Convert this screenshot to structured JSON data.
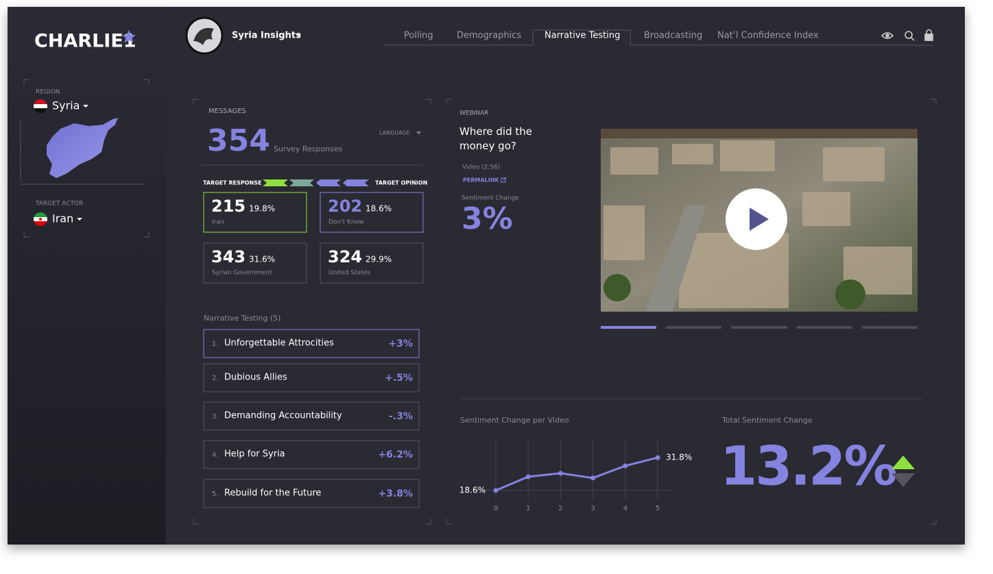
{
  "brand": "CHARLIE1",
  "sidebar": {
    "region_label": "REGION",
    "region": "Syria",
    "actor_label": "TARGET ACTOR",
    "actor": "Iran"
  },
  "header": {
    "project": "Syria Insights",
    "nav": [
      "Polling",
      "Demographics",
      "Narrative Testing",
      "Broadcasting",
      "Nat’l Confidence Index"
    ]
  },
  "messages": {
    "label": "MESSAGES",
    "count": 354,
    "count_label": "Survey Responses",
    "language": "LANGUAGE",
    "target_response": "TARGET RESPONSE",
    "target_opinion": "TARGET OPINION",
    "cards": [
      {
        "value": 215,
        "percent": "19.8%",
        "label": "Iran"
      },
      {
        "value": 202,
        "percent": "18.6%",
        "label": "Don't Know"
      },
      {
        "value": 343,
        "percent": "31.6%",
        "label": "Syrian Government"
      },
      {
        "value": 324,
        "percent": "29.9%",
        "label": "United States"
      }
    ]
  },
  "narratives": {
    "title": "Narrative Testing (5)",
    "items": [
      {
        "index": "1.",
        "name": "Unforgettable Attrocities",
        "change": "+3%"
      },
      {
        "index": "2.",
        "name": "Dubious Allies",
        "change": "+.5%"
      },
      {
        "index": "3.",
        "name": "Demanding Accountability",
        "change": "-.3%"
      },
      {
        "index": "4.",
        "name": "Help for Syria",
        "change": "+6.2%"
      },
      {
        "index": "5.",
        "name": "Rebuild for the Future",
        "change": "+3.8%"
      }
    ]
  },
  "webinar": {
    "label": "WEBINAR",
    "title": "Where did the money go?",
    "meta": "Video (2:56)",
    "permalink": "PERMALINK",
    "sentiment_label": "Sentiment Change",
    "sentiment": "3%"
  },
  "chart_data": {
    "type": "line",
    "title": "Sentiment Change per Video",
    "x": [
      0,
      1,
      2,
      3,
      4,
      5
    ],
    "xticks": [
      0,
      1,
      2,
      3,
      4,
      5
    ],
    "xlim": [
      0,
      5
    ],
    "values": [
      18.6,
      24.1,
      25.5,
      23.6,
      28.5,
      31.8
    ],
    "value_labels": [
      "18.6%",
      null,
      null,
      null,
      null,
      "31.8%"
    ],
    "ylim": [
      15,
      39
    ],
    "color": "#8583e0"
  },
  "total": {
    "label": "Total Sentiment Change",
    "value": "13.2%"
  }
}
